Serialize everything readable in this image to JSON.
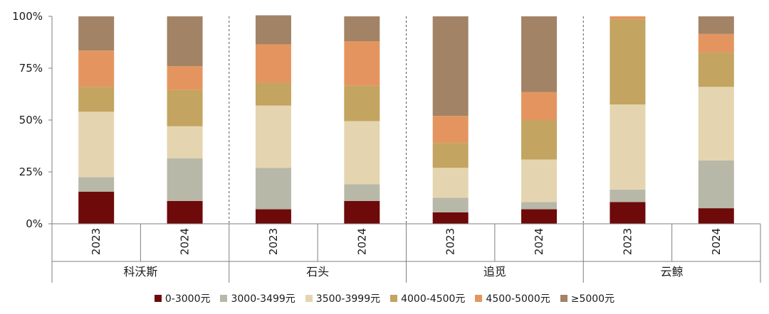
{
  "chart_data": {
    "type": "bar",
    "stacked": true,
    "normalized": true,
    "ylim": [
      0,
      100
    ],
    "y_ticks": [
      "0%",
      "25%",
      "50%",
      "75%",
      "100%"
    ],
    "groups": [
      "科沃斯",
      "石头",
      "追觅",
      "云鲸"
    ],
    "years": [
      "2023",
      "2024"
    ],
    "grid": false,
    "legend_position": "bottom",
    "series": [
      {
        "name": "0-3000元",
        "color": "#6e0a0a",
        "values": [
          15.5,
          11.0,
          7.0,
          11.0,
          5.5,
          7.0,
          10.5,
          7.5
        ]
      },
      {
        "name": "3000-3499元",
        "color": "#b8b8a8",
        "values": [
          7.0,
          20.5,
          20.0,
          8.0,
          7.0,
          3.5,
          6.0,
          23.0
        ]
      },
      {
        "name": "3500-3999元",
        "color": "#e4d5b0",
        "values": [
          31.5,
          15.5,
          30.0,
          30.5,
          14.5,
          20.5,
          41.0,
          35.5
        ]
      },
      {
        "name": "4000-4500元",
        "color": "#c3a460",
        "values": [
          12.0,
          17.5,
          11.0,
          17.0,
          12.0,
          19.0,
          41.0,
          16.5
        ]
      },
      {
        "name": "4500-5000元",
        "color": "#e4955f",
        "values": [
          17.5,
          11.5,
          18.5,
          21.5,
          13.0,
          13.5,
          1.5,
          9.0
        ]
      },
      {
        "name": "≥5000元",
        "color": "#a28365",
        "values": [
          16.5,
          24.0,
          14.0,
          12.0,
          48.0,
          36.5,
          0.0,
          8.5
        ]
      }
    ]
  }
}
